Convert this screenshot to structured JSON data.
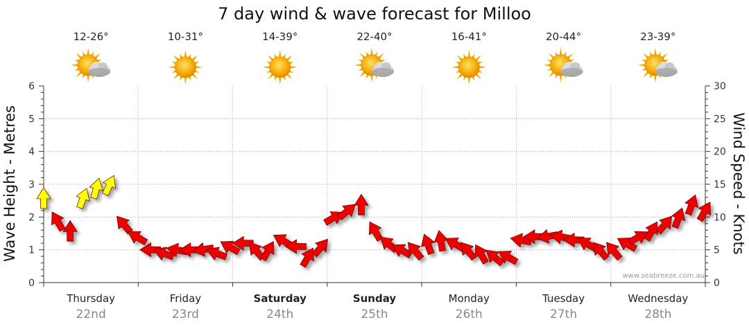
{
  "chart_data": {
    "type": "line",
    "title": "7 day wind & wave forecast for Milloo",
    "y_left": {
      "label": "Wave Height - Metres",
      "range": [
        0,
        6
      ],
      "ticks": [
        "0",
        "1",
        "2",
        "3",
        "4",
        "5",
        "6"
      ]
    },
    "y_right": {
      "label": "Wind Speed - Knots",
      "range": [
        0,
        30
      ],
      "ticks": [
        "0",
        "5",
        "10",
        "15",
        "20",
        "25",
        "30"
      ]
    },
    "watermark": "www.seabreeze.com.au",
    "days": [
      {
        "name": "Thursday",
        "date": "22nd",
        "temp": "12-26°",
        "weather": "partly-cloudy-sun-icon",
        "bold": false
      },
      {
        "name": "Friday",
        "date": "23rd",
        "temp": "10-31°",
        "weather": "sun-icon",
        "bold": false
      },
      {
        "name": "Saturday",
        "date": "24th",
        "temp": "14-39°",
        "weather": "sun-icon",
        "bold": true
      },
      {
        "name": "Sunday",
        "date": "25th",
        "temp": "22-40°",
        "weather": "partly-cloudy-sun-icon",
        "bold": true
      },
      {
        "name": "Monday",
        "date": "26th",
        "temp": "16-41°",
        "weather": "sun-icon",
        "bold": false
      },
      {
        "name": "Tuesday",
        "date": "27th",
        "temp": "20-44°",
        "weather": "partly-cloudy-sun-icon",
        "bold": false
      },
      {
        "name": "Wednesday",
        "date": "28th",
        "temp": "23-39°",
        "weather": "partly-cloudy-sun-icon",
        "bold": false
      }
    ],
    "wind_series": {
      "x_day_fraction": [
        0.0,
        0.14,
        0.28,
        0.42,
        0.56,
        0.7,
        0.84,
        0.98,
        1.12,
        1.26,
        1.4,
        1.54,
        1.68,
        1.82,
        1.96,
        2.1,
        2.24,
        2.38,
        2.52,
        2.66,
        2.8,
        2.94,
        3.08,
        3.22,
        3.36,
        3.5,
        3.64,
        3.78,
        3.92,
        4.06,
        4.2,
        4.34,
        4.48,
        4.62,
        4.76,
        4.9,
        5.04,
        5.18,
        5.32,
        5.46,
        5.6,
        5.74,
        5.88,
        6.02,
        6.16,
        6.3,
        6.44,
        6.58,
        6.72,
        6.86,
        7.0
      ],
      "knots": [
        13,
        9.5,
        8,
        13,
        14.5,
        15,
        9,
        7,
        5,
        4.5,
        5,
        5,
        5,
        4.5,
        5.5,
        6,
        5,
        5,
        6.5,
        5.5,
        4,
        5.5,
        10,
        11,
        12,
        8,
        6,
        5,
        5,
        6,
        6.5,
        6,
        5,
        4.5,
        4,
        4,
        6.5,
        7,
        7,
        7,
        6.5,
        6,
        5,
        5,
        6,
        7,
        8,
        9,
        10,
        12,
        11
      ],
      "direction_deg": [
        0,
        330,
        0,
        20,
        15,
        25,
        320,
        300,
        270,
        290,
        280,
        270,
        260,
        290,
        300,
        270,
        320,
        30,
        300,
        270,
        30,
        40,
        60,
        50,
        0,
        330,
        310,
        300,
        320,
        340,
        350,
        300,
        320,
        330,
        310,
        300,
        280,
        270,
        260,
        280,
        270,
        300,
        320,
        320,
        300,
        60,
        30,
        40,
        20,
        20,
        30
      ],
      "strong_threshold_knots": 13
    },
    "colors": {
      "wind_arrow": "#ee0000",
      "wind_arrow_strong": "#ffff00",
      "arrow_outline": "#660000",
      "grid": "#aaaaaa"
    }
  }
}
